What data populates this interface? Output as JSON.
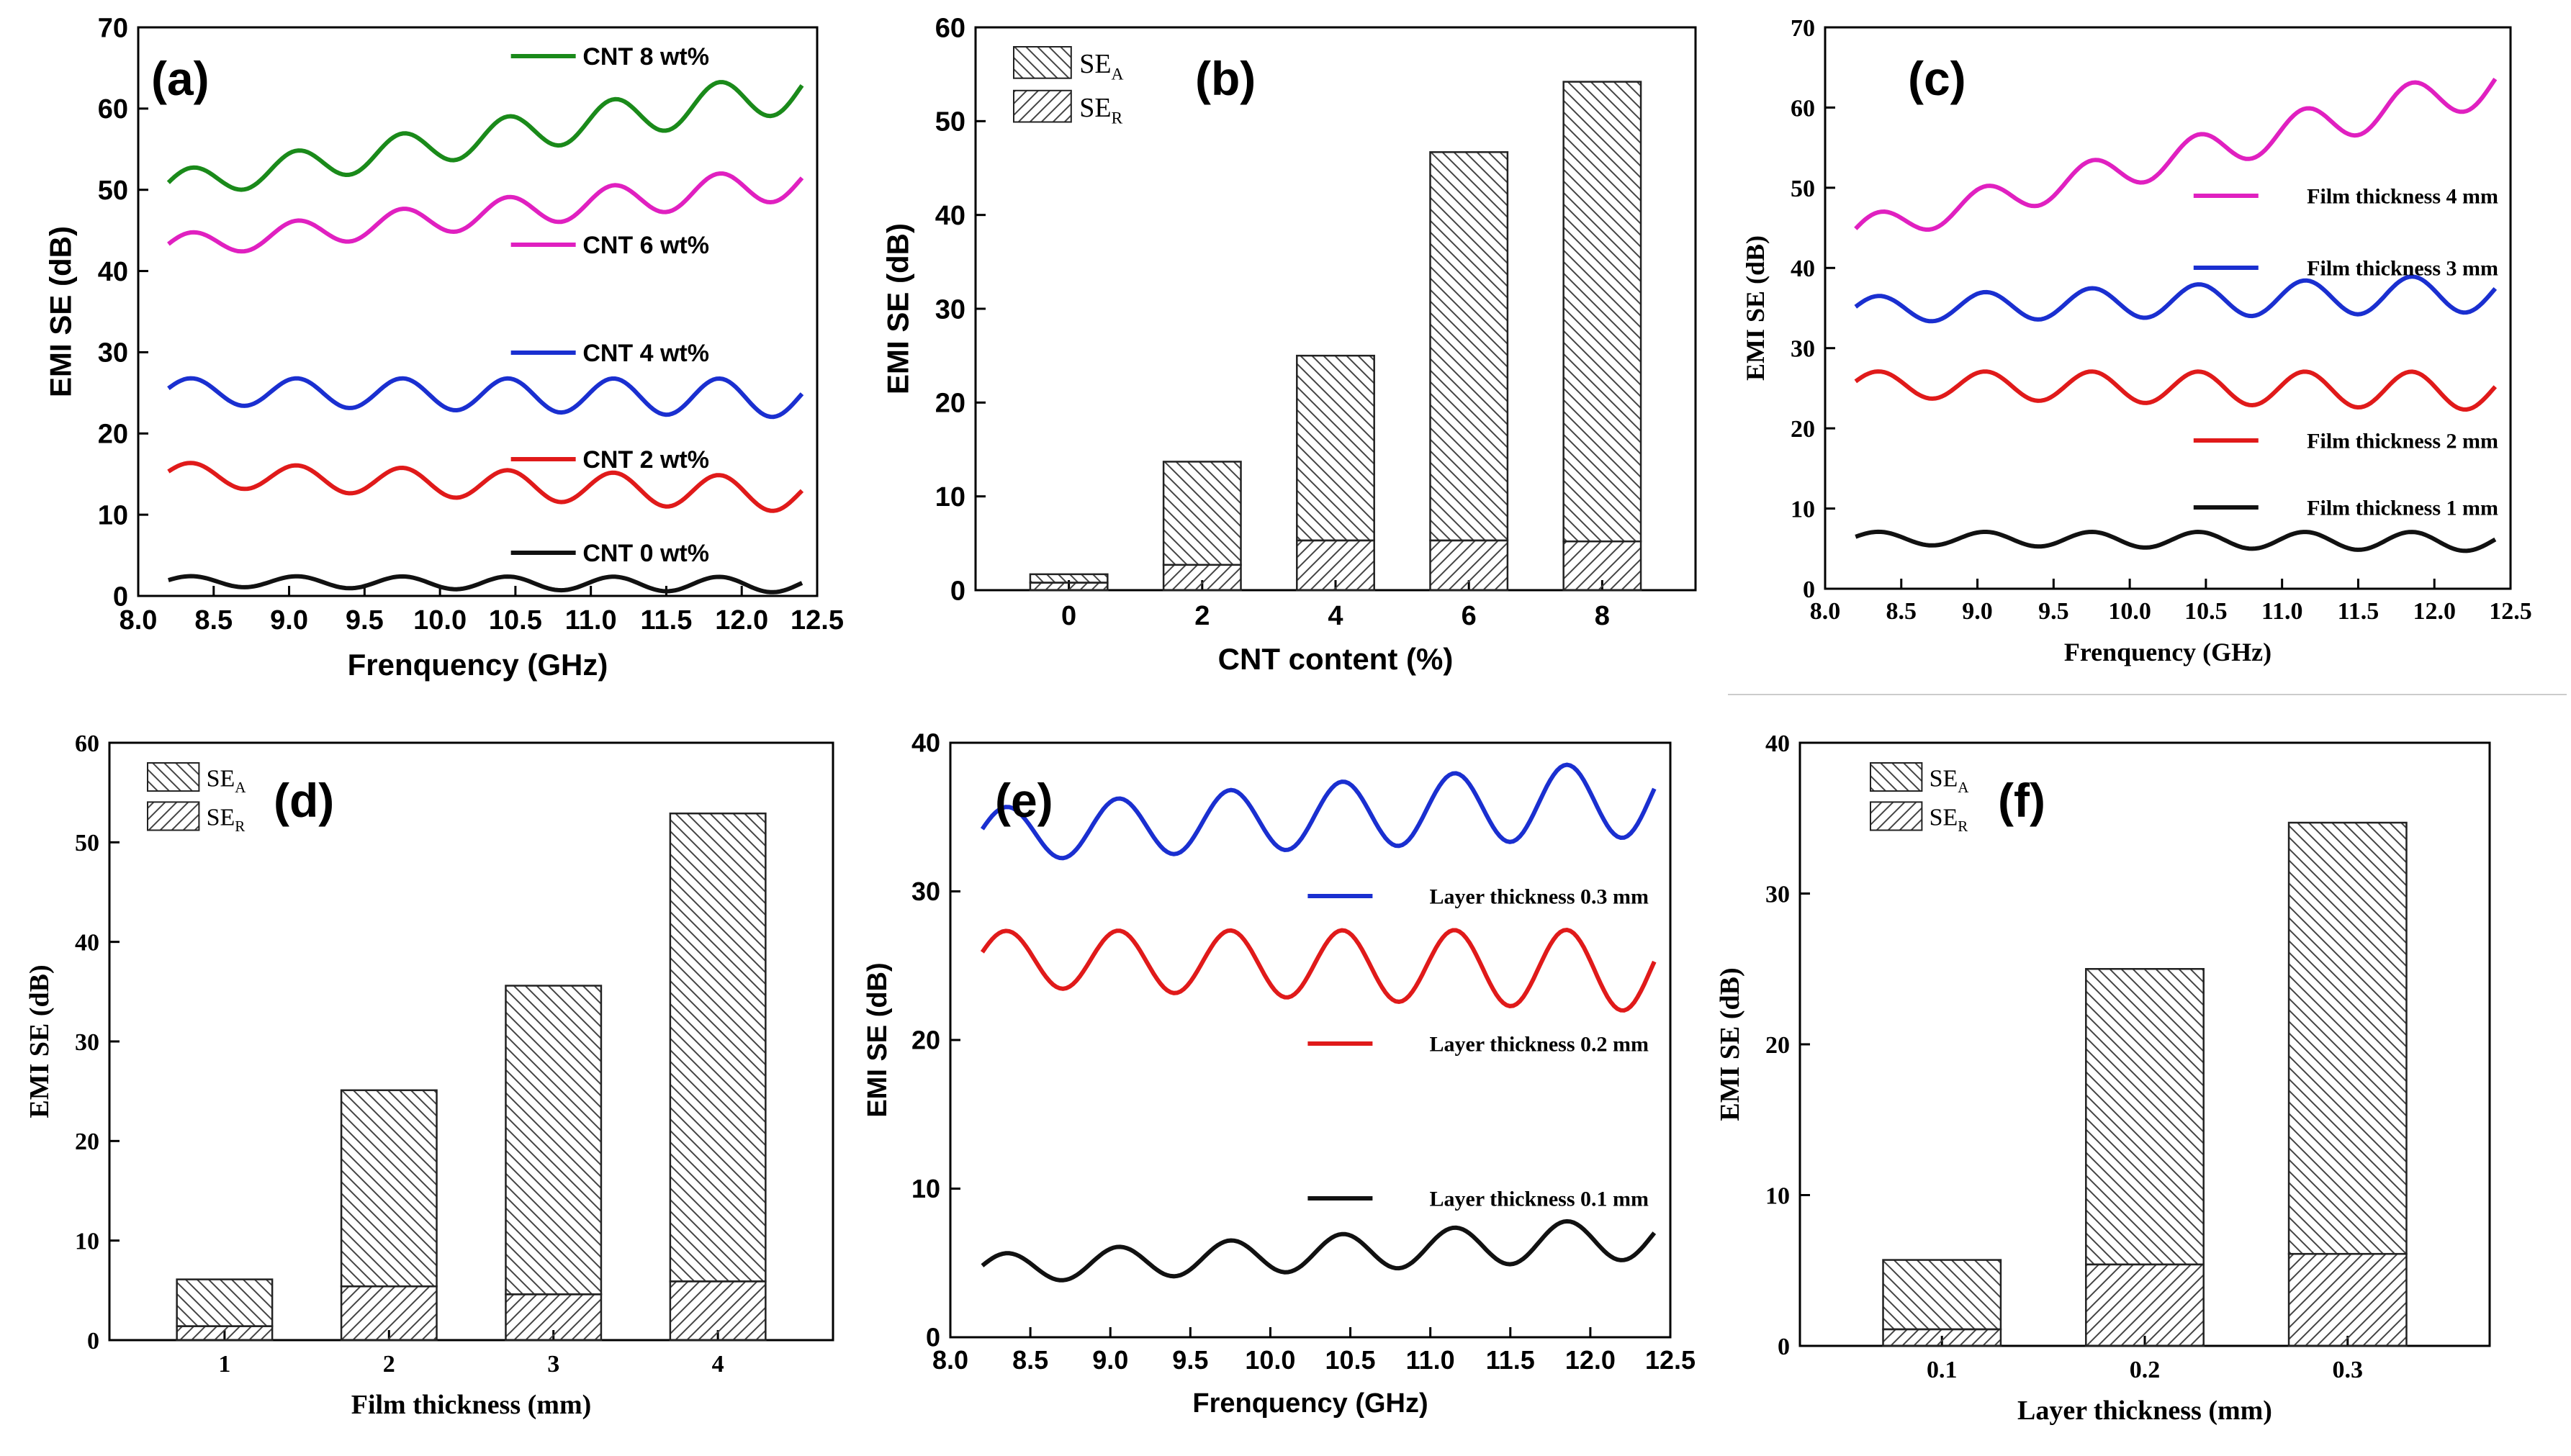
{
  "chart_data": [
    {
      "id": "a",
      "panel_label": "(a)",
      "type": "line",
      "xlabel": "Frenquency (GHz)",
      "ylabel": "EMI SE (dB)",
      "xlim": [
        8.0,
        12.5
      ],
      "ylim": [
        0,
        70
      ],
      "xticks": [
        "8.0",
        "8.5",
        "9.0",
        "9.5",
        "10.0",
        "10.5",
        "11.0",
        "11.5",
        "12.0",
        "12.5"
      ],
      "yticks": [
        "0",
        "10",
        "20",
        "30",
        "40",
        "50",
        "60",
        "70"
      ],
      "series": [
        {
          "name": "CNT 8 wt%",
          "color": "#1a8a1a",
          "base": 50.5,
          "slope": 2.8,
          "amp": 2.2
        },
        {
          "name": "CNT 6 wt%",
          "color": "#e020c0",
          "base": 43.0,
          "slope": 1.9,
          "amp": 1.8
        },
        {
          "name": "CNT 4 wt%",
          "color": "#1a2fd0",
          "base": 25.2,
          "slope": -0.2,
          "amp": 2.0
        },
        {
          "name": "CNT 2 wt%",
          "color": "#e01a1a",
          "base": 15.0,
          "slope": -0.6,
          "amp": 1.8
        },
        {
          "name": "CNT 0 wt%",
          "color": "#111111",
          "base": 1.8,
          "slope": -0.1,
          "amp": 0.8
        }
      ]
    },
    {
      "id": "b",
      "panel_label": "(b)",
      "type": "bar",
      "stacked": true,
      "xlabel": "CNT content (%)",
      "ylabel": "EMI SE (dB)",
      "ylim": [
        0,
        60
      ],
      "yticks": [
        "0",
        "10",
        "20",
        "30",
        "40",
        "50",
        "60"
      ],
      "categories": [
        "0",
        "2",
        "4",
        "6",
        "8"
      ],
      "legend": [
        {
          "main": "SE",
          "sub": "A",
          "hatch": "back"
        },
        {
          "main": "SE",
          "sub": "R",
          "hatch": "fwd"
        }
      ],
      "series": [
        {
          "name": "SER",
          "values": [
            0.8,
            2.7,
            5.3,
            5.3,
            5.2
          ]
        },
        {
          "name": "SEA",
          "values": [
            0.9,
            11.0,
            19.7,
            41.4,
            49.0
          ]
        }
      ]
    },
    {
      "id": "c",
      "panel_label": "(c)",
      "type": "line",
      "xlabel": "Frenquency (GHz)",
      "ylabel": "EMI SE (dB)",
      "xlim": [
        8.0,
        12.5
      ],
      "ylim": [
        0,
        70
      ],
      "xticks": [
        "8.0",
        "8.5",
        "9.0",
        "9.5",
        "10.0",
        "10.5",
        "11.0",
        "11.5",
        "12.0",
        "12.5"
      ],
      "yticks": [
        "0",
        "10",
        "20",
        "30",
        "40",
        "50",
        "60",
        "70"
      ],
      "series": [
        {
          "name": "Film thickness 4 mm",
          "color": "#e020c0",
          "base": 44.5,
          "slope": 4.4,
          "amp": 2.2
        },
        {
          "name": "Film thickness 3 mm",
          "color": "#1a2fd0",
          "base": 34.8,
          "slope": 0.5,
          "amp": 2.0
        },
        {
          "name": "Film thickness 2 mm",
          "color": "#e01a1a",
          "base": 25.5,
          "slope": -0.2,
          "amp": 2.0
        },
        {
          "name": "Film thickness 1 mm",
          "color": "#111111",
          "base": 6.3,
          "slope": -0.1,
          "amp": 1.0
        }
      ]
    },
    {
      "id": "d",
      "panel_label": "(d)",
      "type": "bar",
      "stacked": true,
      "xlabel": "Film thickness (mm)",
      "ylabel": "EMI SE (dB)",
      "ylim": [
        0,
        60
      ],
      "yticks": [
        "0",
        "10",
        "20",
        "30",
        "40",
        "50",
        "60"
      ],
      "categories": [
        "1",
        "2",
        "3",
        "4"
      ],
      "legend": [
        {
          "main": "SE",
          "sub": "A",
          "hatch": "back"
        },
        {
          "main": "SE",
          "sub": "R",
          "hatch": "fwd"
        }
      ],
      "series": [
        {
          "name": "SER",
          "values": [
            1.4,
            5.4,
            4.6,
            5.9
          ]
        },
        {
          "name": "SEA",
          "values": [
            4.7,
            19.7,
            31.0,
            47.0
          ]
        }
      ]
    },
    {
      "id": "e",
      "panel_label": "(e)",
      "type": "line",
      "xlabel": "Frenquency (GHz)",
      "ylabel": "EMI SE (dB)",
      "xlim": [
        8.0,
        12.5
      ],
      "ylim": [
        0,
        40
      ],
      "xticks": [
        "8.0",
        "8.5",
        "9.0",
        "9.5",
        "10.0",
        "10.5",
        "11.0",
        "11.5",
        "12.0",
        "12.5"
      ],
      "yticks": [
        "0",
        "10",
        "20",
        "30",
        "40"
      ],
      "series": [
        {
          "name": "Layer thickness 0.3 mm",
          "color": "#1a2fd0",
          "base": 33.8,
          "slope": 0.6,
          "amp": 2.2
        },
        {
          "name": "Layer thickness 0.2 mm",
          "color": "#e01a1a",
          "base": 25.5,
          "slope": -0.2,
          "amp": 2.3
        },
        {
          "name": "Layer thickness 0.1 mm",
          "color": "#111111",
          "base": 4.6,
          "slope": 0.5,
          "amp": 1.2
        }
      ]
    },
    {
      "id": "f",
      "panel_label": "(f)",
      "type": "bar",
      "stacked": true,
      "xlabel": "Layer thickness (mm)",
      "ylabel": "EMI SE (dB)",
      "ylim": [
        0,
        40
      ],
      "yticks": [
        "0",
        "10",
        "20",
        "30",
        "40"
      ],
      "categories": [
        "0.1",
        "0.2",
        "0.3"
      ],
      "legend": [
        {
          "main": "SE",
          "sub": "A",
          "hatch": "back"
        },
        {
          "main": "SE",
          "sub": "R",
          "hatch": "fwd"
        }
      ],
      "series": [
        {
          "name": "SER",
          "values": [
            1.1,
            5.4,
            6.1
          ]
        },
        {
          "name": "SEA",
          "values": [
            4.6,
            19.6,
            28.6
          ]
        }
      ]
    }
  ]
}
